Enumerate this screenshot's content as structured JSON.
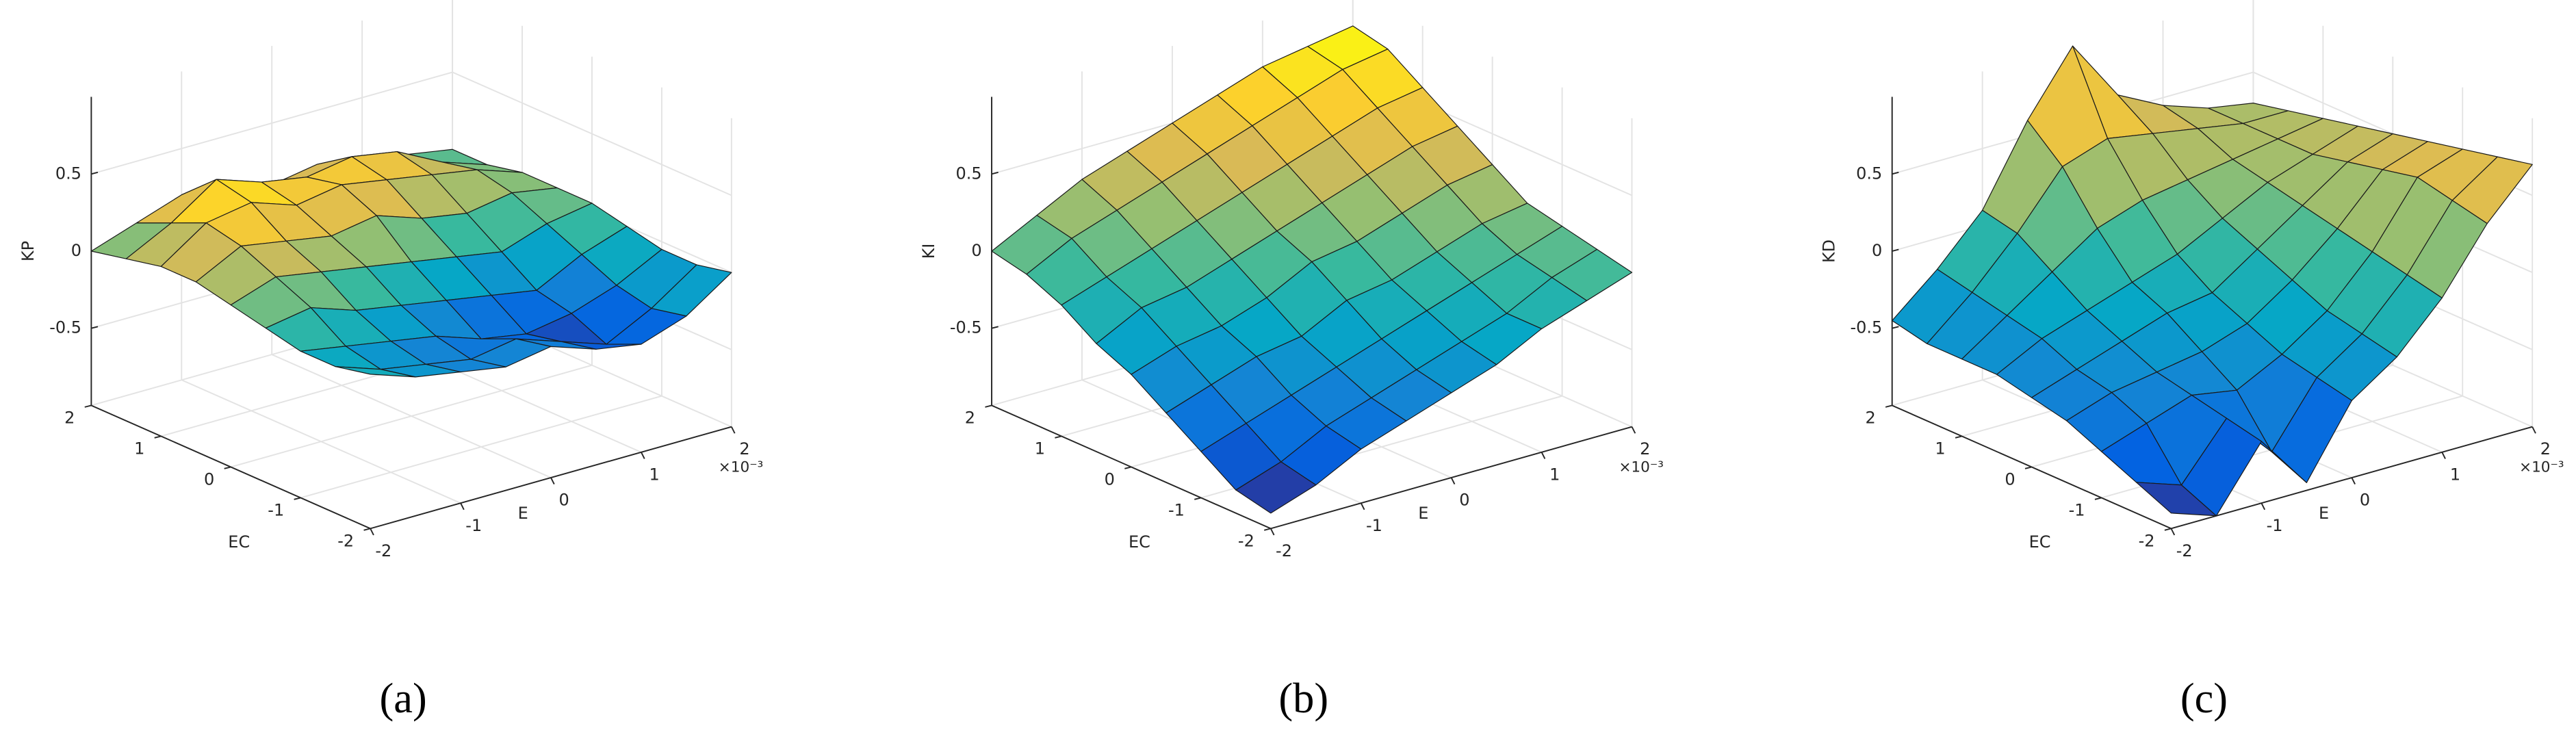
{
  "chart_data": [
    {
      "type": "surface",
      "caption": "(a)",
      "xlabel": "E",
      "ylabel": "EC",
      "zlabel": "KP",
      "x_multiplier": "×10⁻³",
      "x": [
        -2,
        -1.5,
        -1,
        -0.5,
        0,
        0.5,
        1,
        1.5,
        2
      ],
      "y": [
        -2,
        -1.5,
        -1,
        -0.5,
        0,
        0.5,
        1,
        1.5,
        2
      ],
      "z": [
        [
          0,
          -0.1,
          -0.15,
          -0.2,
          -0.15,
          -0.25,
          -0.3,
          -0.2,
          0
        ],
        [
          -0.05,
          -0.15,
          -0.2,
          -0.25,
          -0.2,
          -0.3,
          -0.4,
          -0.25,
          -0.05
        ],
        [
          -0.05,
          -0.1,
          -0.15,
          -0.2,
          -0.3,
          -0.35,
          -0.3,
          -0.2,
          -0.05
        ],
        [
          0,
          0.05,
          -0.05,
          -0.1,
          -0.15,
          -0.2,
          -0.25,
          -0.1,
          0
        ],
        [
          0.05,
          0.15,
          0.1,
          0.05,
          0,
          -0.05,
          -0.1,
          0,
          0.05
        ],
        [
          0.1,
          0.25,
          0.2,
          0.15,
          0.2,
          0.1,
          0.05,
          0.1,
          0.05
        ],
        [
          0.1,
          0.3,
          0.35,
          0.25,
          0.3,
          0.25,
          0.2,
          0.15,
          0.05
        ],
        [
          0.05,
          0.2,
          0.4,
          0.3,
          0.25,
          0.3,
          0.25,
          0.1,
          0
        ],
        [
          0,
          0.1,
          0.2,
          0.15,
          0.1,
          0.15,
          0.1,
          0.05,
          0
        ]
      ],
      "xlim": [
        -2,
        2
      ],
      "ylim": [
        -2,
        2
      ],
      "zlim": [
        -1,
        1
      ],
      "xticks": [
        -2,
        -1,
        0,
        1,
        2
      ],
      "yticks": [
        -2,
        -1,
        0,
        1,
        2
      ],
      "zticks": [
        -0.5,
        0,
        0.5
      ],
      "grid": true,
      "colormap": [
        "#352a87",
        "#0363e1",
        "#1485d4",
        "#06a7c6",
        "#38b99e",
        "#92bf73",
        "#d9ba56",
        "#fcce2e",
        "#f9fb0e"
      ]
    },
    {
      "type": "surface",
      "caption": "(b)",
      "xlabel": "E",
      "ylabel": "EC",
      "zlabel": "KI",
      "x_multiplier": "×10⁻³",
      "x": [
        -2,
        -1.5,
        -1,
        -0.5,
        0,
        0.5,
        1,
        1.5,
        2
      ],
      "y": [
        -2,
        -1.5,
        -1,
        -0.5,
        0,
        0.5,
        1,
        1.5,
        2
      ],
      "z": [
        [
          -0.9,
          -0.8,
          -0.65,
          -0.55,
          -0.45,
          -0.35,
          -0.2,
          -0.1,
          0
        ],
        [
          -0.85,
          -0.75,
          -0.6,
          -0.5,
          -0.4,
          -0.3,
          -0.2,
          -0.05,
          0.05
        ],
        [
          -0.7,
          -0.6,
          -0.5,
          -0.4,
          -0.3,
          -0.2,
          -0.1,
          0,
          0.1
        ],
        [
          -0.55,
          -0.45,
          -0.35,
          -0.3,
          -0.15,
          -0.1,
          0,
          0.1,
          0.15
        ],
        [
          -0.4,
          -0.3,
          -0.25,
          -0.15,
          0,
          0.05,
          0.15,
          0.25,
          0.3
        ],
        [
          -0.3,
          -0.15,
          -0.1,
          0,
          0.1,
          0.2,
          0.3,
          0.4,
          0.45
        ],
        [
          -0.15,
          -0.05,
          0.05,
          0.15,
          0.25,
          0.35,
          0.45,
          0.55,
          0.6
        ],
        [
          -0.05,
          0.1,
          0.2,
          0.3,
          0.4,
          0.5,
          0.6,
          0.7,
          0.75
        ],
        [
          0,
          0.15,
          0.3,
          0.4,
          0.5,
          0.6,
          0.7,
          0.75,
          0.8
        ]
      ],
      "xlim": [
        -2,
        2
      ],
      "ylim": [
        -2,
        2
      ],
      "zlim": [
        -1,
        1
      ],
      "xticks": [
        -2,
        -1,
        0,
        1,
        2
      ],
      "yticks": [
        -2,
        -1,
        0,
        1,
        2
      ],
      "zticks": [
        -0.5,
        0,
        0.5
      ],
      "grid": true,
      "colormap": [
        "#352a87",
        "#0363e1",
        "#1485d4",
        "#06a7c6",
        "#38b99e",
        "#92bf73",
        "#d9ba56",
        "#fcce2e",
        "#f9fb0e"
      ]
    },
    {
      "type": "surface",
      "caption": "(c)",
      "xlabel": "E",
      "ylabel": "EC",
      "zlabel": "KD",
      "x_multiplier": "×10⁻³",
      "x": [
        -2,
        -1.5,
        -1,
        -0.5,
        0,
        0.5,
        1,
        1.5,
        2
      ],
      "y": [
        -2,
        -1.5,
        -1,
        -0.5,
        0,
        0.5,
        1,
        1.5,
        2
      ],
      "z": [
        [
          -0.9,
          -1,
          -0.6,
          -0.95,
          -0.5,
          -0.3,
          0,
          0.4,
          0.7
        ],
        [
          -0.8,
          -0.9,
          -0.55,
          -0.85,
          -0.45,
          -0.25,
          0.05,
          0.45,
          0.65
        ],
        [
          -0.7,
          -0.6,
          -0.5,
          -0.55,
          -0.4,
          -0.2,
          0.1,
          0.5,
          0.6
        ],
        [
          -0.6,
          -0.5,
          -0.45,
          -0.4,
          -0.3,
          -0.1,
          0.15,
          0.45,
          0.55
        ],
        [
          -0.55,
          -0.45,
          -0.35,
          -0.25,
          -0.2,
          0,
          0.2,
          0.4,
          0.5
        ],
        [
          -0.5,
          -0.35,
          -0.25,
          -0.15,
          -0.05,
          0.1,
          0.25,
          0.35,
          0.45
        ],
        [
          -0.5,
          -0.3,
          -0.1,
          0.1,
          0.2,
          0.25,
          0.3,
          0.35,
          0.4
        ],
        [
          -0.5,
          -0.25,
          0.05,
          0.4,
          0.5,
          0.45,
          0.4,
          0.35,
          0.35
        ],
        [
          -0.45,
          -0.2,
          0.1,
          0.6,
          1,
          0.6,
          0.45,
          0.35,
          0.3
        ]
      ],
      "xlim": [
        -2,
        2
      ],
      "ylim": [
        -2,
        2
      ],
      "zlim": [
        -1,
        1
      ],
      "xticks": [
        -2,
        -1,
        0,
        1,
        2
      ],
      "yticks": [
        -2,
        -1,
        0,
        1,
        2
      ],
      "zticks": [
        -0.5,
        0,
        0.5
      ],
      "grid": true,
      "colormap": [
        "#352a87",
        "#0363e1",
        "#1485d4",
        "#06a7c6",
        "#38b99e",
        "#92bf73",
        "#d9ba56",
        "#fcce2e",
        "#f9fb0e"
      ]
    }
  ]
}
